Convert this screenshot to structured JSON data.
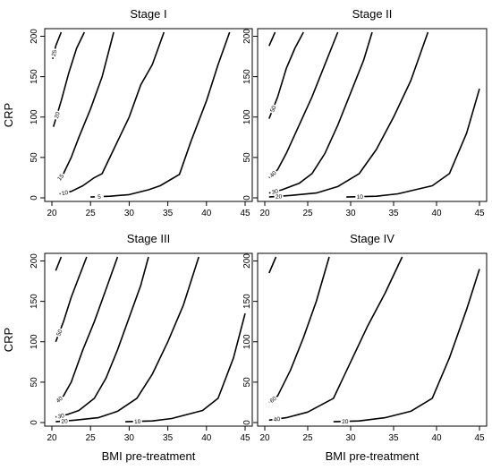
{
  "chart_data": [
    {
      "type": "line",
      "title": "Stage I",
      "xlabel": "",
      "ylabel": "CRP",
      "xlim": [
        20,
        45
      ],
      "ylim": [
        0,
        205
      ],
      "xticks": [
        20,
        25,
        30,
        35,
        40,
        45
      ],
      "yticks": [
        0,
        50,
        100,
        150,
        200
      ],
      "series": [
        {
          "label": "25",
          "points": [
            [
              20.1,
              172
            ],
            [
              20.5,
              188
            ],
            [
              21.2,
              205
            ]
          ]
        },
        {
          "label": "20",
          "points": [
            [
              20.2,
              88
            ],
            [
              21.2,
              120
            ],
            [
              22.2,
              155
            ],
            [
              23.2,
              185
            ],
            [
              24.2,
              205
            ]
          ]
        },
        {
          "label": "15",
          "points": [
            [
              20.8,
              22
            ],
            [
              21.5,
              30
            ],
            [
              22.5,
              50
            ],
            [
              23.5,
              75
            ],
            [
              25,
              110
            ],
            [
              26.5,
              150
            ],
            [
              28,
              205
            ]
          ]
        },
        {
          "label": "10",
          "points": [
            [
              21,
              5
            ],
            [
              22.5,
              8
            ],
            [
              24,
              15
            ],
            [
              25.5,
              25
            ],
            [
              26.5,
              30
            ],
            [
              28,
              60
            ],
            [
              30,
              100
            ],
            [
              31.5,
              140
            ],
            [
              33,
              165
            ],
            [
              34.5,
              205
            ]
          ]
        },
        {
          "label": "5",
          "points": [
            [
              25,
              1
            ],
            [
              27.5,
              2
            ],
            [
              30,
              4
            ],
            [
              32.5,
              10
            ],
            [
              34,
              15
            ],
            [
              36.5,
              29
            ],
            [
              38,
              70
            ],
            [
              40,
              120
            ],
            [
              41.5,
              165
            ],
            [
              43,
              205
            ]
          ]
        }
      ]
    },
    {
      "type": "line",
      "title": "Stage II",
      "xlabel": "",
      "ylabel": "",
      "xlim": [
        20,
        45
      ],
      "ylim": [
        0,
        205
      ],
      "xticks": [
        20,
        25,
        30,
        35,
        40,
        45
      ],
      "yticks": [
        0,
        50,
        100,
        150,
        200
      ],
      "series": [
        {
          "label": "",
          "points": [
            [
              20.5,
              188
            ],
            [
              21.2,
              205
            ]
          ]
        },
        {
          "label": "50",
          "points": [
            [
              20.5,
              98
            ],
            [
              21.5,
              125
            ],
            [
              22.5,
              160
            ],
            [
              23.5,
              185
            ],
            [
              24.5,
              205
            ]
          ]
        },
        {
          "label": "40",
          "points": [
            [
              20.5,
              25
            ],
            [
              21.5,
              35
            ],
            [
              22.5,
              55
            ],
            [
              24,
              90
            ],
            [
              25.5,
              125
            ],
            [
              27,
              165
            ],
            [
              28.5,
              205
            ]
          ]
        },
        {
          "label": "30",
          "points": [
            [
              20.5,
              6
            ],
            [
              22,
              10
            ],
            [
              24,
              18
            ],
            [
              25.5,
              30
            ],
            [
              27,
              55
            ],
            [
              28.5,
              90
            ],
            [
              30,
              130
            ],
            [
              31.5,
              170
            ],
            [
              32.5,
              205
            ]
          ]
        },
        {
          "label": "20",
          "points": [
            [
              20.5,
              1
            ],
            [
              23,
              3
            ],
            [
              26,
              6
            ],
            [
              28.5,
              14
            ],
            [
              31,
              30
            ],
            [
              33,
              60
            ],
            [
              35,
              100
            ],
            [
              37,
              145
            ],
            [
              39,
              205
            ]
          ]
        },
        {
          "label": "10",
          "points": [
            [
              29.5,
              1
            ],
            [
              33,
              2
            ],
            [
              35.5,
              5
            ],
            [
              37.5,
              10
            ],
            [
              39.5,
              15
            ],
            [
              41.5,
              30
            ],
            [
              43.5,
              80
            ],
            [
              45,
              135
            ]
          ]
        }
      ]
    },
    {
      "type": "line",
      "title": "Stage III",
      "xlabel": "BMI pre-treatment",
      "ylabel": "CRP",
      "xlim": [
        20,
        45
      ],
      "ylim": [
        0,
        205
      ],
      "xticks": [
        20,
        25,
        30,
        35,
        40,
        45
      ],
      "yticks": [
        0,
        50,
        100,
        150,
        200
      ],
      "series": [
        {
          "label": "",
          "points": [
            [
              20.5,
              188
            ],
            [
              21.2,
              205
            ]
          ]
        },
        {
          "label": "50",
          "points": [
            [
              20.5,
              100
            ],
            [
              21.5,
              125
            ],
            [
              22.5,
              155
            ],
            [
              23.5,
              180
            ],
            [
              24.5,
              205
            ]
          ]
        },
        {
          "label": "40",
          "points": [
            [
              20.5,
              25
            ],
            [
              21.5,
              33
            ],
            [
              22.5,
              50
            ],
            [
              24,
              90
            ],
            [
              25.5,
              125
            ],
            [
              27,
              165
            ],
            [
              28.5,
              205
            ]
          ]
        },
        {
          "label": "30",
          "points": [
            [
              20.5,
              7
            ],
            [
              22,
              10
            ],
            [
              23.5,
              15
            ],
            [
              25.5,
              30
            ],
            [
              27,
              55
            ],
            [
              28.5,
              90
            ],
            [
              30,
              130
            ],
            [
              31.5,
              170
            ],
            [
              32.5,
              205
            ]
          ]
        },
        {
          "label": "20",
          "points": [
            [
              20.5,
              1
            ],
            [
              23,
              3
            ],
            [
              26,
              6
            ],
            [
              28.5,
              14
            ],
            [
              31,
              30
            ],
            [
              33,
              60
            ],
            [
              35,
              100
            ],
            [
              37,
              145
            ],
            [
              39,
              205
            ]
          ]
        },
        {
          "label": "10",
          "points": [
            [
              29.5,
              1
            ],
            [
              33,
              2
            ],
            [
              35.5,
              5
            ],
            [
              37.5,
              10
            ],
            [
              39.5,
              15
            ],
            [
              41.5,
              30
            ],
            [
              43.5,
              80
            ],
            [
              45,
              135
            ]
          ]
        }
      ]
    },
    {
      "type": "line",
      "title": "Stage IV",
      "xlabel": "BMI pre-treatment",
      "ylabel": "",
      "xlim": [
        20,
        45
      ],
      "ylim": [
        0,
        205
      ],
      "xticks": [
        20,
        25,
        30,
        35,
        40,
        45
      ],
      "yticks": [
        0,
        50,
        100,
        150,
        200
      ],
      "series": [
        {
          "label": "",
          "points": [
            [
              20.5,
              185
            ],
            [
              21.3,
              205
            ]
          ]
        },
        {
          "label": "60",
          "points": [
            [
              20.5,
              25
            ],
            [
              21.5,
              33
            ],
            [
              23,
              65
            ],
            [
              24.5,
              105
            ],
            [
              26,
              150
            ],
            [
              27.5,
              205
            ]
          ]
        },
        {
          "label": "40",
          "points": [
            [
              20.5,
              3
            ],
            [
              22.5,
              6
            ],
            [
              25,
              13
            ],
            [
              28,
              30
            ],
            [
              30,
              75
            ],
            [
              32,
              120
            ],
            [
              34,
              160
            ],
            [
              36,
              205
            ]
          ]
        },
        {
          "label": "20",
          "points": [
            [
              28,
              1
            ],
            [
              31,
              2
            ],
            [
              34,
              6
            ],
            [
              37,
              14
            ],
            [
              39.5,
              30
            ],
            [
              41.5,
              80
            ],
            [
              43.5,
              140
            ],
            [
              45,
              190
            ]
          ]
        }
      ]
    }
  ]
}
